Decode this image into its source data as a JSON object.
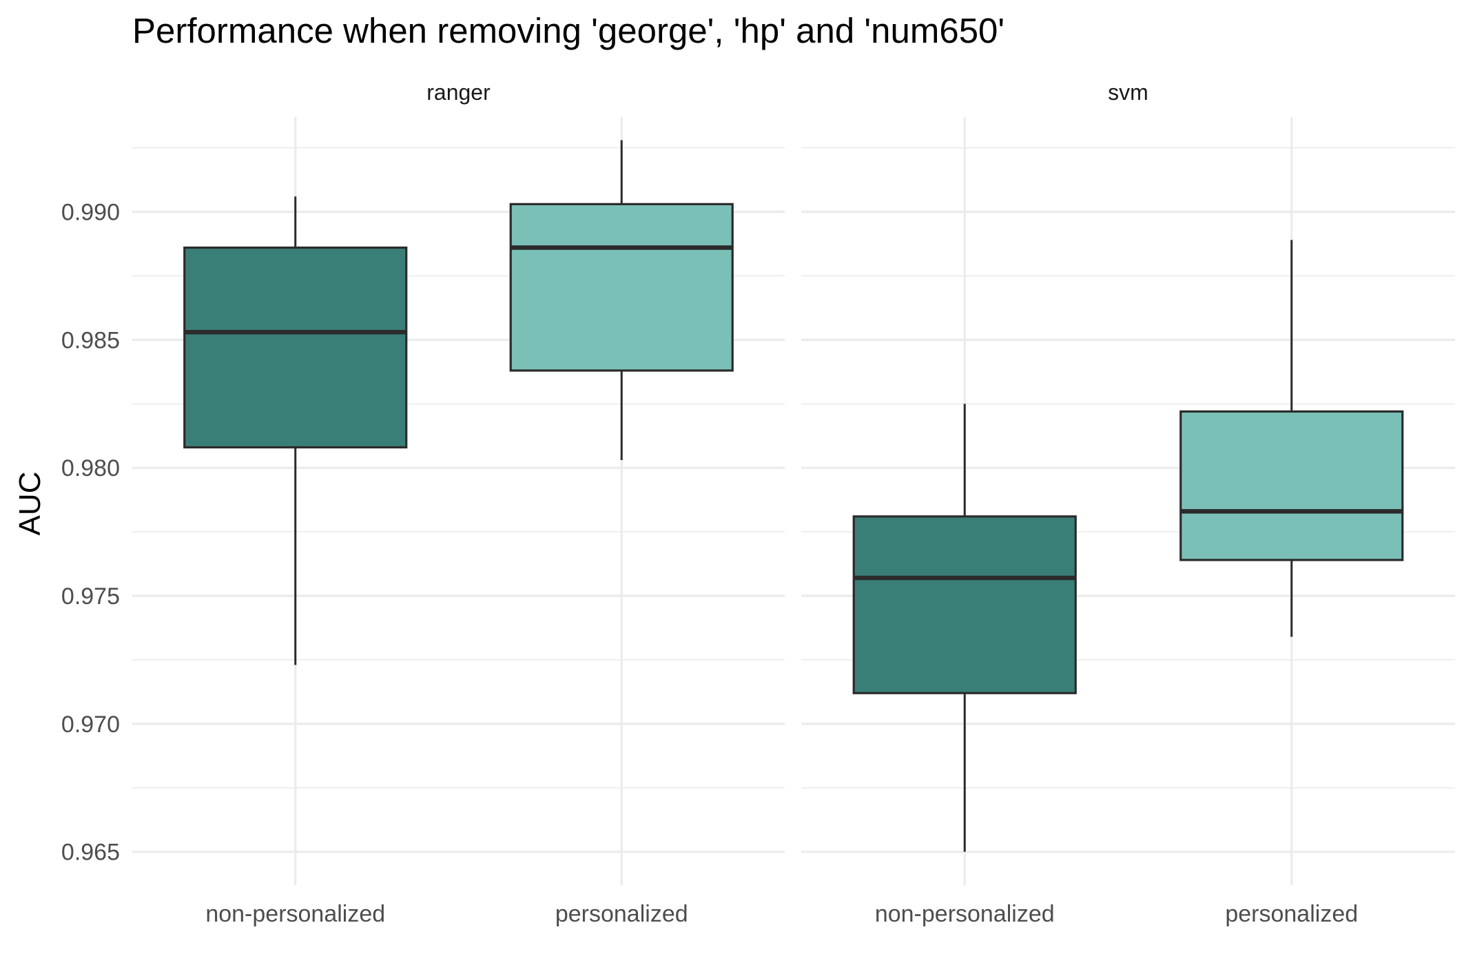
{
  "chart_data": {
    "type": "boxplot",
    "title": "Performance when removing 'george', 'hp' and 'num650'",
    "ylabel": "AUC",
    "xlabel": "",
    "ylim": [
      0.9637,
      0.9937
    ],
    "y_ticks": [
      0.965,
      0.97,
      0.975,
      0.98,
      0.985,
      0.99
    ],
    "y_tick_labels": [
      "0.965",
      "0.970",
      "0.975",
      "0.980",
      "0.985",
      "0.990"
    ],
    "grid": true,
    "legend": "none",
    "categories": [
      "non-personalized",
      "personalized"
    ],
    "colors": {
      "non-personalized": "#3A7F77",
      "personalized": "#7BC0B7"
    },
    "panels": [
      {
        "label": "ranger",
        "boxes": [
          {
            "category": "non-personalized",
            "lower_whisker": 0.9723,
            "q1": 0.9808,
            "median": 0.9853,
            "q3": 0.9886,
            "upper_whisker": 0.9906
          },
          {
            "category": "personalized",
            "lower_whisker": 0.9803,
            "q1": 0.9838,
            "median": 0.9886,
            "q3": 0.9903,
            "upper_whisker": 0.9928
          }
        ]
      },
      {
        "label": "svm",
        "boxes": [
          {
            "category": "non-personalized",
            "lower_whisker": 0.965,
            "q1": 0.9712,
            "median": 0.9757,
            "q3": 0.9781,
            "upper_whisker": 0.9825
          },
          {
            "category": "personalized",
            "lower_whisker": 0.9734,
            "q1": 0.9764,
            "median": 0.9783,
            "q3": 0.9822,
            "upper_whisker": 0.9889
          }
        ]
      }
    ]
  }
}
